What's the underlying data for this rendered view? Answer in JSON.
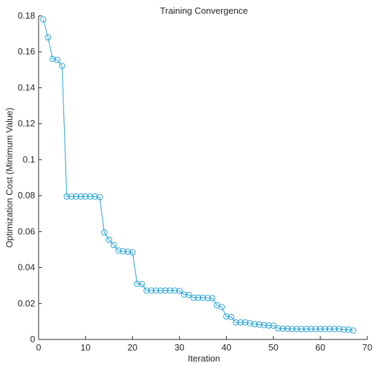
{
  "chart_data": {
    "type": "line",
    "title": "Training Convergence",
    "xlabel": "Iteration",
    "ylabel": "Optimization Cost (Minimum Value)",
    "xlim": [
      0,
      70
    ],
    "ylim": [
      0,
      0.18
    ],
    "xticks": [
      0,
      10,
      20,
      30,
      40,
      50,
      60,
      70
    ],
    "yticks": [
      0,
      0.02,
      0.04,
      0.06,
      0.08,
      0.1,
      0.12,
      0.14,
      0.16,
      0.18
    ],
    "xtick_labels": [
      "0",
      "10",
      "20",
      "30",
      "40",
      "50",
      "60",
      "70"
    ],
    "ytick_labels": [
      "0",
      "0.02",
      "0.04",
      "0.06",
      "0.08",
      "0.1",
      "0.12",
      "0.14",
      "0.16",
      "0.18"
    ],
    "grid": false,
    "marker": "circle",
    "color": "#1f9fd5",
    "series": [
      {
        "x": [
          1,
          2,
          3,
          4,
          5,
          6,
          7,
          8,
          9,
          10,
          11,
          12,
          13,
          14,
          15,
          16,
          17,
          18,
          19,
          20,
          21,
          22,
          23,
          24,
          25,
          26,
          27,
          28,
          29,
          30,
          31,
          32,
          33,
          34,
          35,
          36,
          37,
          38,
          39,
          40,
          41,
          42,
          43,
          44,
          45,
          46,
          47,
          48,
          49,
          50,
          51,
          52,
          53,
          54,
          55,
          56,
          57,
          58,
          59,
          60,
          61,
          62,
          63,
          64,
          65,
          66,
          67
        ],
        "values": [
          0.178,
          0.168,
          0.156,
          0.1555,
          0.1522,
          0.0795,
          0.0795,
          0.0795,
          0.0795,
          0.0795,
          0.0795,
          0.0795,
          0.0792,
          0.0595,
          0.0555,
          0.0525,
          0.0495,
          0.049,
          0.0488,
          0.0485,
          0.031,
          0.0308,
          0.0272,
          0.0272,
          0.0272,
          0.0272,
          0.0272,
          0.0272,
          0.0272,
          0.027,
          0.025,
          0.0248,
          0.0232,
          0.0232,
          0.0232,
          0.023,
          0.023,
          0.019,
          0.018,
          0.0128,
          0.0125,
          0.0095,
          0.0095,
          0.0095,
          0.009,
          0.0085,
          0.0083,
          0.008,
          0.0078,
          0.0077,
          0.0062,
          0.006,
          0.006,
          0.0058,
          0.0058,
          0.0058,
          0.0058,
          0.0058,
          0.0058,
          0.0058,
          0.0058,
          0.0058,
          0.0058,
          0.0058,
          0.0055,
          0.0055,
          0.005
        ]
      }
    ]
  }
}
